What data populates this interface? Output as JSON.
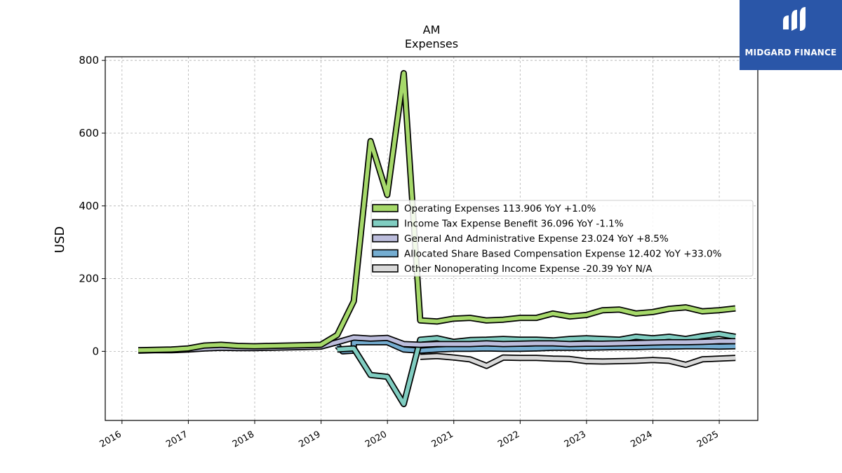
{
  "brand": {
    "name": "MIDGARD FINANCE",
    "color": "#2a56a8"
  },
  "chart_data": {
    "type": "line",
    "title": "AM",
    "subtitle": "Expenses",
    "ylabel": "USD",
    "xlabel": "",
    "xlim": [
      "2015-10-01",
      "2025-08-01"
    ],
    "ylim": [
      -190,
      810
    ],
    "yticks": [
      0,
      200,
      400,
      600,
      800
    ],
    "xticks": [
      "2016",
      "2017",
      "2018",
      "2019",
      "2020",
      "2021",
      "2022",
      "2023",
      "2024",
      "2025"
    ],
    "grid": true,
    "legend_position": "center-right",
    "series": [
      {
        "name": "Operating Expenses  113.906 YoY +1.0%",
        "color": "#a6d96a",
        "x": [
          "2016-03-31",
          "2016-06-30",
          "2016-09-30",
          "2016-12-31",
          "2017-03-31",
          "2017-06-30",
          "2017-09-30",
          "2017-12-31",
          "2018-03-31",
          "2018-06-30",
          "2018-09-30",
          "2018-12-31",
          "2019-03-31",
          "2019-06-30",
          "2019-09-30",
          "2019-12-31",
          "2020-03-31",
          "2020-06-30",
          "2020-09-30",
          "2020-12-31",
          "2021-03-31",
          "2021-06-30",
          "2021-09-30",
          "2021-12-31",
          "2022-03-31",
          "2022-06-30",
          "2022-09-30",
          "2022-12-31",
          "2023-03-31",
          "2023-06-30",
          "2023-09-30",
          "2023-12-31",
          "2024-03-31",
          "2024-06-30",
          "2024-09-30",
          "2024-12-31",
          "2025-03-31"
        ],
        "y": [
          3,
          4,
          5,
          8,
          16,
          18,
          15,
          14,
          15,
          16,
          17,
          18,
          45,
          138,
          578,
          430,
          765,
          85,
          82,
          90,
          92,
          85,
          87,
          92,
          92,
          104,
          96,
          100,
          113,
          115,
          104,
          108,
          117,
          121,
          110,
          113,
          118
        ]
      },
      {
        "name": "Income Tax Expense Benefit  36.096 YoY -1.1%",
        "color": "#80cdc1",
        "x": [
          "2019-03-31",
          "2019-06-30",
          "2019-09-30",
          "2019-12-31",
          "2020-03-31",
          "2020-06-30",
          "2020-09-30",
          "2020-12-31",
          "2021-03-31",
          "2021-06-30",
          "2021-09-30",
          "2021-12-31",
          "2022-03-31",
          "2022-06-30",
          "2022-09-30",
          "2022-12-31",
          "2023-03-31",
          "2023-06-30",
          "2023-09-30",
          "2023-12-31",
          "2024-03-31",
          "2024-06-30",
          "2024-09-30",
          "2024-12-31",
          "2025-03-31"
        ],
        "y": [
          5,
          8,
          -65,
          -70,
          -145,
          32,
          36,
          26,
          31,
          32,
          34,
          32,
          32,
          30,
          34,
          36,
          34,
          32,
          40,
          36,
          40,
          34,
          42,
          48,
          40
        ]
      },
      {
        "name": "General And Administrative Expense  23.024 YoY +8.5%",
        "color": "#bcbddc",
        "x": [
          "2016-03-31",
          "2016-06-30",
          "2016-09-30",
          "2016-12-31",
          "2017-03-31",
          "2017-06-30",
          "2017-09-30",
          "2017-12-31",
          "2018-03-31",
          "2018-06-30",
          "2018-09-30",
          "2018-12-31",
          "2019-03-31",
          "2019-06-30",
          "2019-09-30",
          "2019-12-31",
          "2020-03-31",
          "2020-06-30",
          "2020-09-30",
          "2020-12-31",
          "2021-03-31",
          "2021-06-30",
          "2021-09-30",
          "2021-12-31",
          "2022-03-31",
          "2022-06-30",
          "2022-09-30",
          "2022-12-31",
          "2023-03-31",
          "2023-06-30",
          "2023-09-30",
          "2023-12-31",
          "2024-03-31",
          "2024-06-30",
          "2024-09-30",
          "2024-12-31",
          "2025-03-31"
        ],
        "y": [
          2,
          3,
          3,
          5,
          8,
          10,
          9,
          9,
          10,
          11,
          12,
          13,
          25,
          38,
          35,
          37,
          20,
          18,
          20,
          20,
          20,
          22,
          20,
          21,
          22,
          22,
          20,
          21,
          21,
          22,
          23,
          24,
          25,
          25,
          26,
          28,
          28
        ]
      },
      {
        "name": "Allocated Share Based Compensation Expense  12.402 YoY +33.0%",
        "color": "#74add1",
        "x": [
          "2019-03-31",
          "2019-04-30",
          "2019-06-30",
          "2019-06-30",
          "2019-09-30",
          "2019-12-31",
          "2020-03-31",
          "2020-06-30",
          "2020-09-30",
          "2020-12-31",
          "2021-03-31",
          "2021-06-30",
          "2021-09-30",
          "2021-12-31",
          "2022-03-31",
          "2022-06-30",
          "2022-09-30",
          "2022-12-31",
          "2023-03-31",
          "2023-06-30",
          "2023-09-30",
          "2023-12-31",
          "2024-03-31",
          "2024-06-30",
          "2024-09-30",
          "2024-12-31",
          "2025-03-31"
        ],
        "y": [
          15,
          0,
          2,
          25,
          25,
          25,
          5,
          2,
          5,
          7,
          7,
          8,
          7,
          7,
          8,
          10,
          10,
          10,
          11,
          12,
          12,
          13,
          13,
          14,
          14,
          13,
          14
        ]
      },
      {
        "name": "Other Nonoperating Income Expense  -20.39 YoY N/A",
        "color": "#d9d9d9",
        "x": [
          "2020-06-30",
          "2020-09-30",
          "2020-12-31",
          "2021-03-31",
          "2021-06-30",
          "2021-09-30",
          "2021-12-31",
          "2022-03-31",
          "2022-06-30",
          "2022-09-30",
          "2022-12-31",
          "2023-03-31",
          "2023-06-30",
          "2023-09-30",
          "2023-12-31",
          "2024-03-31",
          "2024-06-30",
          "2024-09-30",
          "2024-12-31",
          "2025-03-31"
        ],
        "y": [
          -15,
          -13,
          -17,
          -22,
          -40,
          -17,
          -18,
          -18,
          -20,
          -21,
          -27,
          -28,
          -27,
          -26,
          -24,
          -26,
          -37,
          -22,
          -20,
          -18
        ]
      }
    ]
  }
}
